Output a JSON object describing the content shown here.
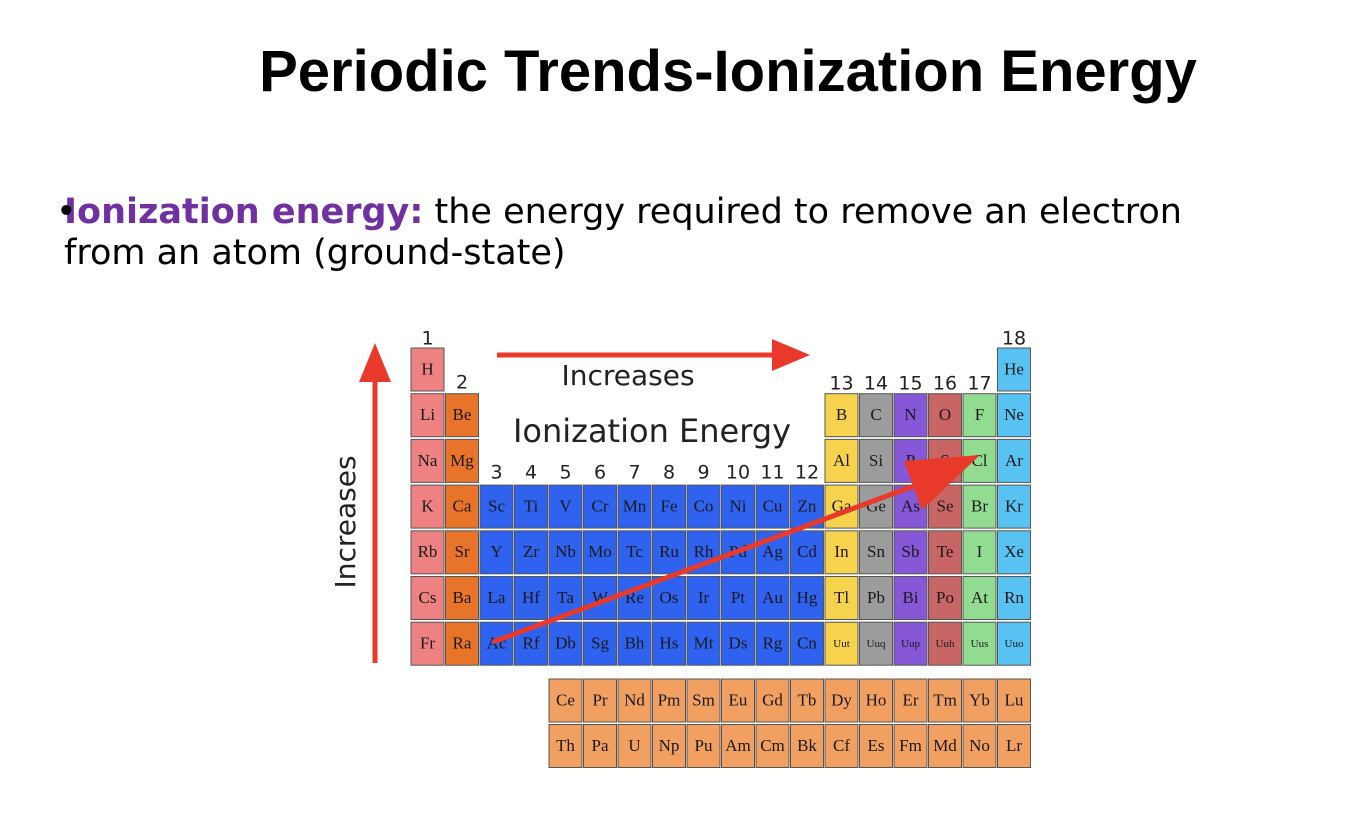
{
  "title": "Periodic Trends-Ionization Energy",
  "bullet": {
    "term": "Ionization energy:",
    "text": "the energy required to remove an electron from an atom (ground-state)"
  },
  "figure": {
    "top_label": "Increases",
    "side_label": "Increases",
    "center_label": "Ionization Energy",
    "groups": [
      "1",
      "2",
      "3",
      "4",
      "5",
      "6",
      "7",
      "8",
      "9",
      "10",
      "11",
      "12",
      "13",
      "14",
      "15",
      "16",
      "17",
      "18"
    ],
    "periods": [
      [
        "H",
        "He"
      ],
      [
        "Li",
        "Be",
        "B",
        "C",
        "N",
        "O",
        "F",
        "Ne"
      ],
      [
        "Na",
        "Mg",
        "Al",
        "Si",
        "P",
        "S",
        "Cl",
        "Ar"
      ],
      [
        "K",
        "Ca",
        "Sc",
        "Ti",
        "V",
        "Cr",
        "Mn",
        "Fe",
        "Co",
        "Ni",
        "Cu",
        "Zn",
        "Ga",
        "Ge",
        "As",
        "Se",
        "Br",
        "Kr"
      ],
      [
        "Rb",
        "Sr",
        "Y",
        "Zr",
        "Nb",
        "Mo",
        "Tc",
        "Ru",
        "Rh",
        "Pd",
        "Ag",
        "Cd",
        "In",
        "Sn",
        "Sb",
        "Te",
        "I",
        "Xe"
      ],
      [
        "Cs",
        "Ba",
        "La",
        "Hf",
        "Ta",
        "W",
        "Re",
        "Os",
        "Ir",
        "Pt",
        "Au",
        "Hg",
        "Tl",
        "Pb",
        "Bi",
        "Po",
        "At",
        "Rn"
      ],
      [
        "Fr",
        "Ra",
        "Ac",
        "Rf",
        "Db",
        "Sg",
        "Bh",
        "Hs",
        "Mt",
        "Ds",
        "Rg",
        "Cn",
        "Uut",
        "Uuq",
        "Uup",
        "Uuh",
        "Uus",
        "Uuo"
      ]
    ],
    "f_block": [
      [
        "Ce",
        "Pr",
        "Nd",
        "Pm",
        "Sm",
        "Eu",
        "Gd",
        "Tb",
        "Dy",
        "Ho",
        "Er",
        "Tm",
        "Yb",
        "Lu"
      ],
      [
        "Th",
        "Pa",
        "U",
        "Np",
        "Pu",
        "Am",
        "Cm",
        "Bk",
        "Cf",
        "Es",
        "Fm",
        "Md",
        "No",
        "Lr"
      ]
    ]
  }
}
